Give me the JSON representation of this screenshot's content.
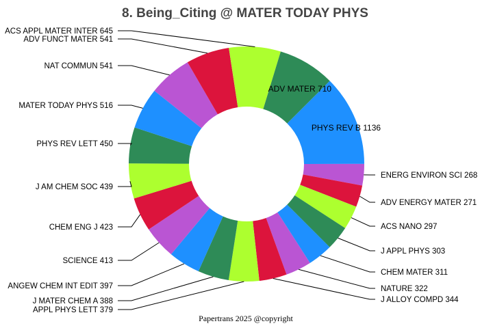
{
  "chart_data": {
    "type": "pie",
    "donut": true,
    "title": "8. Being_Citing @ MATER TODAY PHYS",
    "footer": "Papertrans 2025 @copyright",
    "slices": [
      {
        "label": "PHYS REV B 1136",
        "value": 1136,
        "color": "#1e90ff"
      },
      {
        "label": "ENERG ENVIRON SCI 268",
        "value": 268,
        "color": "#ba55d3"
      },
      {
        "label": "ADV ENERGY MATER 271",
        "value": 271,
        "color": "#dc143c"
      },
      {
        "label": "ACS NANO 297",
        "value": 297,
        "color": "#adff2f"
      },
      {
        "label": "J APPL PHYS 303",
        "value": 303,
        "color": "#2e8b57"
      },
      {
        "label": "CHEM MATER 311",
        "value": 311,
        "color": "#1e90ff"
      },
      {
        "label": "NATURE 322",
        "value": 322,
        "color": "#ba55d3"
      },
      {
        "label": "J ALLOY COMPD 344",
        "value": 344,
        "color": "#dc143c"
      },
      {
        "label": "APPL PHYS LETT 379",
        "value": 379,
        "color": "#adff2f"
      },
      {
        "label": "J MATER CHEM A 388",
        "value": 388,
        "color": "#2e8b57"
      },
      {
        "label": "ANGEW CHEM INT EDIT 397",
        "value": 397,
        "color": "#1e90ff"
      },
      {
        "label": "SCIENCE 413",
        "value": 413,
        "color": "#ba55d3"
      },
      {
        "label": "CHEM ENG J 423",
        "value": 423,
        "color": "#dc143c"
      },
      {
        "label": "J AM CHEM SOC 439",
        "value": 439,
        "color": "#adff2f"
      },
      {
        "label": "PHYS REV LETT 450",
        "value": 450,
        "color": "#2e8b57"
      },
      {
        "label": "MATER TODAY PHYS 516",
        "value": 516,
        "color": "#1e90ff"
      },
      {
        "label": "NAT COMMUN 541",
        "value": 541,
        "color": "#ba55d3"
      },
      {
        "label": "ADV FUNCT MATER 541",
        "value": 541,
        "color": "#dc143c"
      },
      {
        "label": "ACS APPL MATER INTER 645",
        "value": 645,
        "color": "#adff2f"
      },
      {
        "label": "ADV MATER 710",
        "value": 710,
        "color": "#2e8b57"
      }
    ]
  }
}
